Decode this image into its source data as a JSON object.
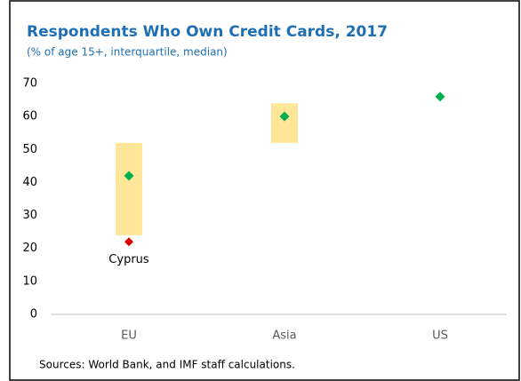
{
  "chart_data": {
    "type": "range",
    "title": "Respondents Who Own Credit Cards, 2017",
    "subtitle": "(% of age 15+, interquartile, median)",
    "categories": [
      "EU",
      "Asia",
      "US"
    ],
    "ranges": {
      "color": "#ffe699",
      "low": [
        24,
        52,
        null
      ],
      "high": [
        52,
        64,
        null
      ]
    },
    "median": {
      "color": "#00b050",
      "values": [
        42,
        60,
        66
      ]
    },
    "annotations": [
      {
        "label": "Cyprus",
        "category": "EU",
        "value": 22,
        "color": "#e00000"
      }
    ],
    "ylim": [
      0,
      70
    ],
    "yticks": [
      0,
      10,
      20,
      30,
      40,
      50,
      60,
      70
    ],
    "source": "Sources: World Bank, and IMF staff calculations."
  }
}
